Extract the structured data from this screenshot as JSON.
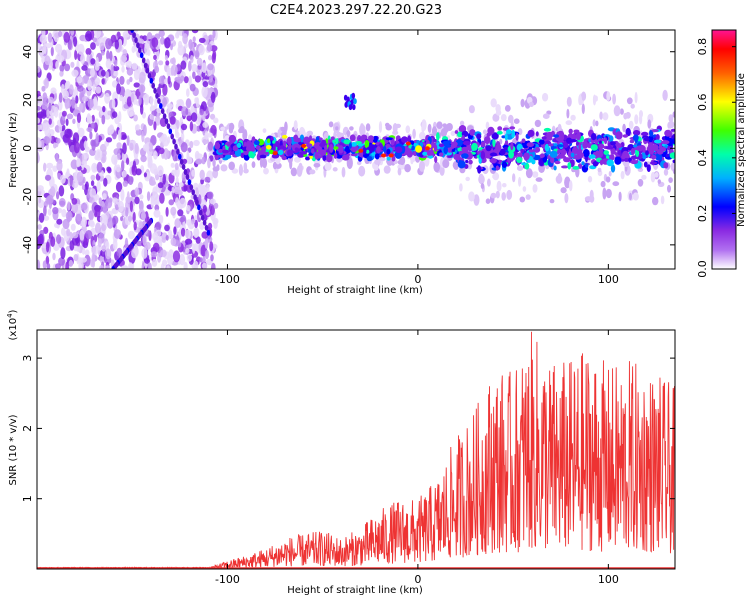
{
  "title": "C2E4.2023.297.22.20.G23",
  "chart_data": [
    {
      "type": "heatmap",
      "xlabel": "Height of straight line (km)",
      "ylabel": "Frequency (Hz)",
      "xlim": [
        -200,
        135
      ],
      "ylim": [
        -50,
        49
      ],
      "xticks": [
        -100,
        0,
        100
      ],
      "yticks": [
        -40,
        -20,
        0,
        20,
        40
      ],
      "xtick_labels": [
        "-100",
        "0",
        "100"
      ],
      "ytick_labels": [
        "-40",
        "-20",
        "0",
        "20",
        "40"
      ],
      "colorbar": {
        "label": "Normalized spectral amplitude",
        "range": [
          0.0,
          0.86
        ],
        "ticks": [
          0.0,
          0.2,
          0.4,
          0.6,
          0.8
        ],
        "tick_labels": [
          "0.0",
          "0.2",
          "0.4",
          "0.6",
          "0.8"
        ],
        "colors": [
          "#ffffff",
          "#8b2be2",
          "#0000ff",
          "#00e0ff",
          "#00ff00",
          "#ffff00",
          "#ff0000",
          "#ff1493"
        ]
      },
      "regions": [
        {
          "name": "noise",
          "x": [
            -200,
            -106
          ],
          "y": [
            -50,
            49
          ],
          "level": 0.07
        },
        {
          "name": "echo band",
          "x": [
            -106,
            135
          ],
          "y": [
            -8,
            7
          ],
          "level": 0.35
        },
        {
          "name": "upper blob",
          "x": [
            -38,
            -33
          ],
          "y": [
            17,
            22
          ],
          "level": 0.2
        }
      ],
      "streaks": [
        {
          "x": [
            -150,
            -110
          ],
          "y": [
            49,
            -35
          ]
        },
        {
          "x": [
            -140,
            -160
          ],
          "y": [
            -30,
            -50
          ]
        }
      ]
    },
    {
      "type": "line",
      "xlabel": "Height of straight line (km)",
      "ylabel": "SNR (10 * v/v)",
      "multiplier": "(x10",
      "multiplier_exp": "4",
      "multiplier_close": ")",
      "xlim": [
        -200,
        135
      ],
      "ylim": [
        0,
        3.4
      ],
      "xticks": [
        -100,
        0,
        100
      ],
      "yticks": [
        1,
        2,
        3
      ],
      "xtick_labels": [
        "-100",
        "0",
        "100"
      ],
      "ytick_labels": [
        "1",
        "2",
        "3"
      ],
      "color": "#ee3333",
      "envelope": {
        "x": [
          -200,
          -110,
          -100,
          -90,
          -80,
          -70,
          -60,
          -50,
          -40,
          -30,
          -20,
          -10,
          0,
          10,
          20,
          30,
          40,
          50,
          60,
          70,
          80,
          90,
          100,
          110,
          120,
          135
        ],
        "y": [
          0.02,
          0.02,
          0.12,
          0.2,
          0.3,
          0.45,
          0.5,
          0.55,
          0.45,
          0.6,
          0.85,
          1.0,
          1.0,
          1.3,
          1.9,
          2.3,
          2.9,
          2.8,
          3.4,
          3.0,
          3.0,
          3.2,
          2.9,
          3.0,
          2.9,
          2.6
        ]
      }
    }
  ]
}
